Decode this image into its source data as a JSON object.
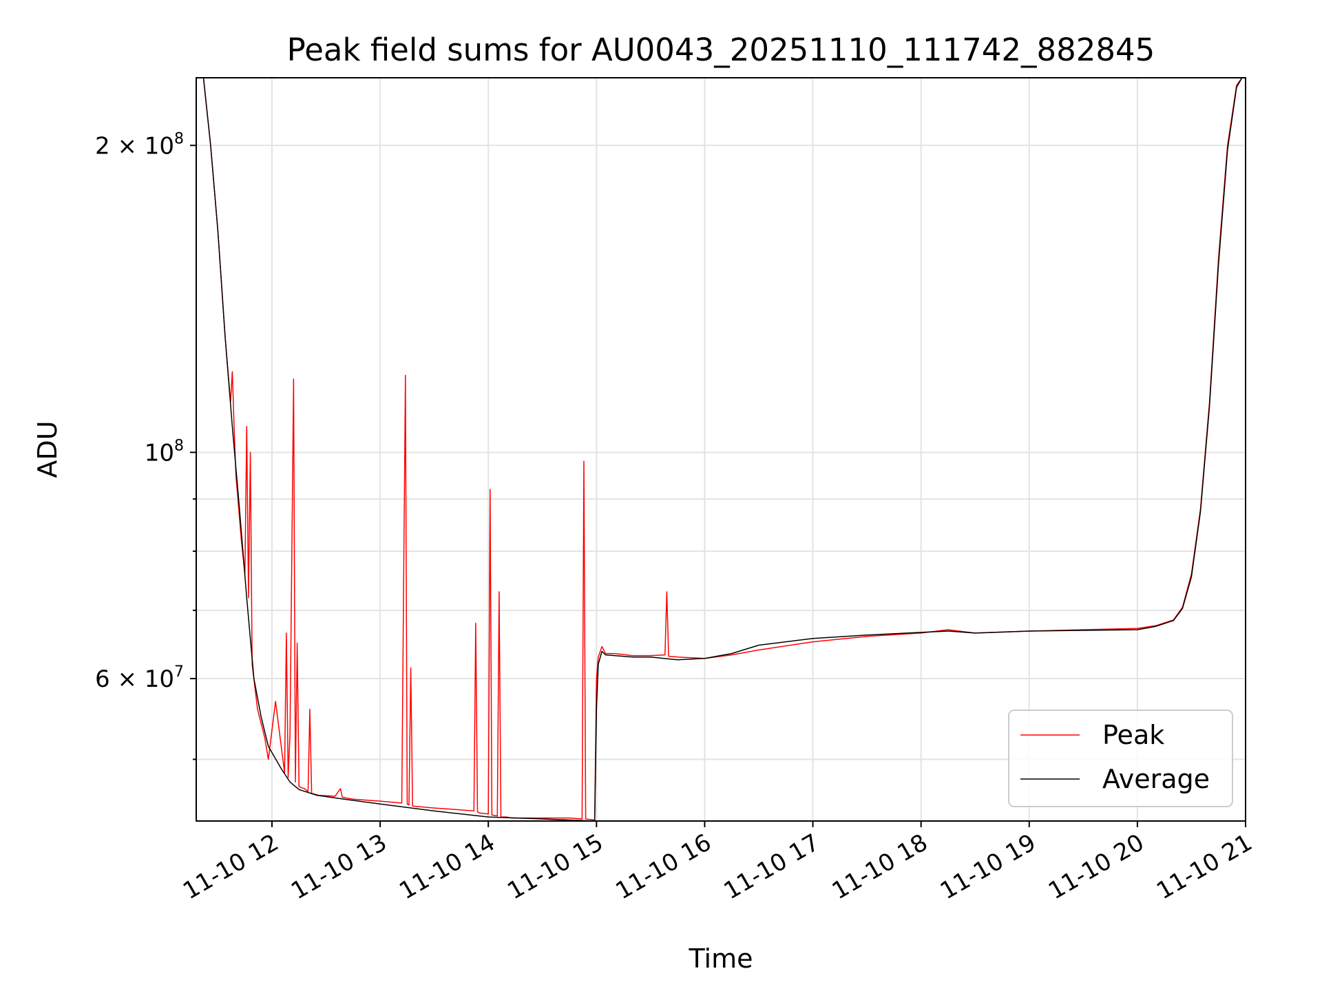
{
  "chart_data": {
    "type": "line",
    "title": "Peak field sums for AU0043_20251110_111742_882845",
    "xlabel": "Time",
    "ylabel": "ADU",
    "y_scale": "log",
    "x_range": [
      "2025-11-10 11:18",
      "2025-11-10 21:00"
    ],
    "ylim": [
      43500000,
      233000000
    ],
    "grid": true,
    "legend_position": "lower-right",
    "x_ticks": [
      {
        "value": "2025-11-10 12:00",
        "label": "11-10 12"
      },
      {
        "value": "2025-11-10 13:00",
        "label": "11-10 13"
      },
      {
        "value": "2025-11-10 14:00",
        "label": "11-10 14"
      },
      {
        "value": "2025-11-10 15:00",
        "label": "11-10 15"
      },
      {
        "value": "2025-11-10 16:00",
        "label": "11-10 16"
      },
      {
        "value": "2025-11-10 17:00",
        "label": "11-10 17"
      },
      {
        "value": "2025-11-10 18:00",
        "label": "11-10 18"
      },
      {
        "value": "2025-11-10 19:00",
        "label": "11-10 19"
      },
      {
        "value": "2025-11-10 20:00",
        "label": "11-10 20"
      },
      {
        "value": "2025-11-10 21:00",
        "label": "11-10 21"
      }
    ],
    "y_ticks": [
      {
        "value": 200000000,
        "mantissa": "2",
        "times": "×",
        "base": "10",
        "exp": "8"
      },
      {
        "value": 100000000,
        "mantissa": "",
        "times": "",
        "base": "10",
        "exp": "8"
      },
      {
        "value": 60000000,
        "mantissa": "6",
        "times": "×",
        "base": "10",
        "exp": "7"
      }
    ],
    "y_minor_ticks": [
      50000000,
      70000000,
      80000000,
      90000000
    ],
    "series": [
      {
        "name": "Peak",
        "color": "#ff0000",
        "x": [
          "2025-11-10 11:18",
          "2025-11-10 11:22",
          "2025-11-10 11:26",
          "2025-11-10 11:30",
          "2025-11-10 11:34",
          "2025-11-10 11:37",
          "2025-11-10 11:38",
          "2025-11-10 11:39",
          "2025-11-10 11:40",
          "2025-11-10 11:43",
          "2025-11-10 11:45",
          "2025-11-10 11:46",
          "2025-11-10 11:47",
          "2025-11-10 11:48",
          "2025-11-10 11:49",
          "2025-11-10 11:52",
          "2025-11-10 11:56",
          "2025-11-10 11:58",
          "2025-11-10 12:02",
          "2025-11-10 12:07",
          "2025-11-10 12:08",
          "2025-11-10 12:09",
          "2025-11-10 12:10",
          "2025-11-10 12:12",
          "2025-11-10 12:13",
          "2025-11-10 12:14",
          "2025-11-10 12:15",
          "2025-11-10 12:18",
          "2025-11-10 12:20",
          "2025-11-10 12:21",
          "2025-11-10 12:22",
          "2025-11-10 12:26",
          "2025-11-10 12:35",
          "2025-11-10 12:38",
          "2025-11-10 12:39",
          "2025-11-10 12:45",
          "2025-11-10 13:00",
          "2025-11-10 13:12",
          "2025-11-10 13:14",
          "2025-11-10 13:15",
          "2025-11-10 13:16",
          "2025-11-10 13:17",
          "2025-11-10 13:18",
          "2025-11-10 13:30",
          "2025-11-10 13:45",
          "2025-11-10 13:52",
          "2025-11-10 13:53",
          "2025-11-10 13:54",
          "2025-11-10 13:55",
          "2025-11-10 14:00",
          "2025-11-10 14:01",
          "2025-11-10 14:02",
          "2025-11-10 14:05",
          "2025-11-10 14:06",
          "2025-11-10 14:07",
          "2025-11-10 14:10",
          "2025-11-10 14:13",
          "2025-11-10 14:14",
          "2025-11-10 14:15",
          "2025-11-10 14:30",
          "2025-11-10 14:45",
          "2025-11-10 14:52",
          "2025-11-10 14:53",
          "2025-11-10 14:54",
          "2025-11-10 14:59",
          "2025-11-10 15:00",
          "2025-11-10 15:01",
          "2025-11-10 15:03",
          "2025-11-10 15:05",
          "2025-11-10 15:10",
          "2025-11-10 15:20",
          "2025-11-10 15:30",
          "2025-11-10 15:38",
          "2025-11-10 15:39",
          "2025-11-10 15:40",
          "2025-11-10 15:45",
          "2025-11-10 16:00",
          "2025-11-10 16:15",
          "2025-11-10 16:30",
          "2025-11-10 17:00",
          "2025-11-10 17:30",
          "2025-11-10 18:00",
          "2025-11-10 18:15",
          "2025-11-10 18:30",
          "2025-11-10 19:00",
          "2025-11-10 19:30",
          "2025-11-10 20:00",
          "2025-11-10 20:10",
          "2025-11-10 20:20",
          "2025-11-10 20:25",
          "2025-11-10 20:30",
          "2025-11-10 20:35",
          "2025-11-10 20:40",
          "2025-11-10 20:45",
          "2025-11-10 20:50",
          "2025-11-10 20:55",
          "2025-11-10 20:58"
        ],
        "y": [
          233000000,
          233000000,
          200000000,
          165000000,
          130000000,
          112000000,
          120000000,
          106000000,
          95000000,
          82000000,
          76000000,
          106000000,
          72000000,
          100000000,
          62000000,
          56000000,
          52500000,
          50000000,
          57000000,
          48500000,
          66500000,
          48000000,
          53000000,
          118000000,
          47500000,
          65000000,
          47000000,
          46800000,
          46500000,
          56000000,
          46300000,
          46100000,
          46000000,
          46800000,
          45900000,
          45700000,
          45500000,
          45300000,
          119000000,
          45200000,
          45100000,
          61500000,
          45000000,
          44800000,
          44600000,
          44500000,
          68000000,
          44400000,
          44300000,
          44200000,
          92000000,
          44100000,
          44000000,
          73000000,
          43900000,
          43900000,
          43800000,
          43800000,
          43800000,
          43800000,
          43800000,
          43700000,
          98000000,
          43700000,
          43600000,
          60000000,
          63000000,
          64500000,
          63500000,
          63500000,
          63200000,
          63200000,
          63300000,
          73000000,
          63100000,
          63000000,
          62800000,
          63300000,
          64000000,
          65200000,
          66000000,
          66500000,
          67000000,
          66500000,
          66800000,
          67000000,
          67200000,
          67600000,
          68500000,
          70500000,
          76000000,
          88000000,
          112000000,
          155000000,
          200000000,
          229000000,
          233000000
        ]
      },
      {
        "name": "Average",
        "color": "#000000",
        "x": [
          "2025-11-10 11:18",
          "2025-11-10 11:22",
          "2025-11-10 11:26",
          "2025-11-10 11:30",
          "2025-11-10 11:34",
          "2025-11-10 11:38",
          "2025-11-10 11:42",
          "2025-11-10 11:46",
          "2025-11-10 11:50",
          "2025-11-10 11:54",
          "2025-11-10 11:58",
          "2025-11-10 12:05",
          "2025-11-10 12:10",
          "2025-11-10 12:15",
          "2025-11-10 12:25",
          "2025-11-10 12:40",
          "2025-11-10 13:00",
          "2025-11-10 13:30",
          "2025-11-10 14:00",
          "2025-11-10 14:30",
          "2025-11-10 14:59",
          "2025-11-10 15:00",
          "2025-11-10 15:01",
          "2025-11-10 15:03",
          "2025-11-10 15:05",
          "2025-11-10 15:10",
          "2025-11-10 15:20",
          "2025-11-10 15:30",
          "2025-11-10 15:45",
          "2025-11-10 16:00",
          "2025-11-10 16:15",
          "2025-11-10 16:30",
          "2025-11-10 17:00",
          "2025-11-10 17:30",
          "2025-11-10 18:00",
          "2025-11-10 18:15",
          "2025-11-10 18:30",
          "2025-11-10 19:00",
          "2025-11-10 19:30",
          "2025-11-10 20:00",
          "2025-11-10 20:10",
          "2025-11-10 20:20",
          "2025-11-10 20:25",
          "2025-11-10 20:30",
          "2025-11-10 20:35",
          "2025-11-10 20:40",
          "2025-11-10 20:45",
          "2025-11-10 20:50",
          "2025-11-10 20:55",
          "2025-11-10 20:58"
        ],
        "y": [
          233000000,
          233000000,
          200000000,
          165000000,
          130000000,
          106000000,
          88000000,
          72000000,
          60000000,
          55000000,
          51500000,
          49000000,
          47500000,
          46700000,
          46100000,
          45700000,
          45200000,
          44500000,
          43900000,
          43700000,
          43500000,
          56000000,
          62000000,
          63800000,
          63300000,
          63200000,
          63000000,
          63000000,
          62600000,
          62800000,
          63500000,
          64700000,
          65700000,
          66200000,
          66600000,
          66800000,
          66500000,
          66800000,
          66900000,
          67000000,
          67500000,
          68400000,
          70300000,
          75500000,
          87500000,
          111000000,
          153000000,
          198000000,
          228000000,
          233000000
        ]
      }
    ]
  }
}
